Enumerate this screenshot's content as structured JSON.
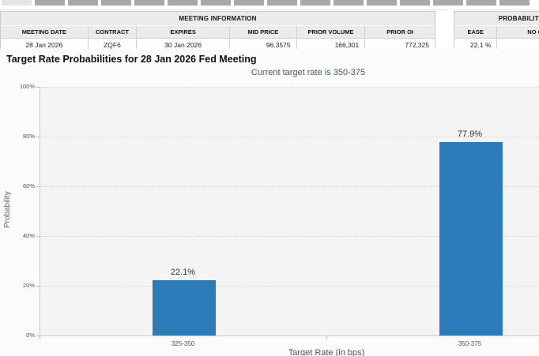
{
  "tab_strip": {
    "tab_count": 16,
    "active_index": 0
  },
  "meeting_info_table": {
    "title": "MEETING INFORMATION",
    "columns": [
      "MEETING DATE",
      "CONTRACT",
      "EXPIRES",
      "MID PRICE",
      "PRIOR VOLUME",
      "PRIOR OI"
    ],
    "row": [
      "28 Jan 2026",
      "ZQF6",
      "30 Jan 2026",
      "96.3575",
      "166,301",
      "772,325"
    ]
  },
  "probability_table": {
    "title": "PROBABILITIES",
    "columns": [
      "EASE",
      "NO CHANGE"
    ],
    "row": [
      "22.1 %",
      ""
    ]
  },
  "chart_data": {
    "type": "bar",
    "title": "Target Rate Probabilities for 28 Jan 2026 Fed Meeting",
    "subtitle": "Current target rate is 350-375",
    "categories": [
      "325-350",
      "350-375"
    ],
    "values": [
      22.1,
      77.9
    ],
    "data_labels": [
      "22.1%",
      "77.9%"
    ],
    "xlabel": "Target Rate (in bps)",
    "ylabel": "Probability",
    "ylim": [
      0,
      100
    ],
    "ytick_values": [
      0,
      20,
      40,
      60,
      80,
      100
    ],
    "ytick_labels": [
      "0%",
      "20%",
      "40%",
      "60%",
      "80%",
      "100%"
    ],
    "grid": "horizontal-dotted",
    "legend": "none",
    "bar_color": "#2b7bb8"
  },
  "colors": {
    "bar": "#2b7bb8",
    "subtitle_text": "#46596d",
    "table_header_bg": "#ebebeb",
    "plot_bg": "#f4f4f4"
  }
}
